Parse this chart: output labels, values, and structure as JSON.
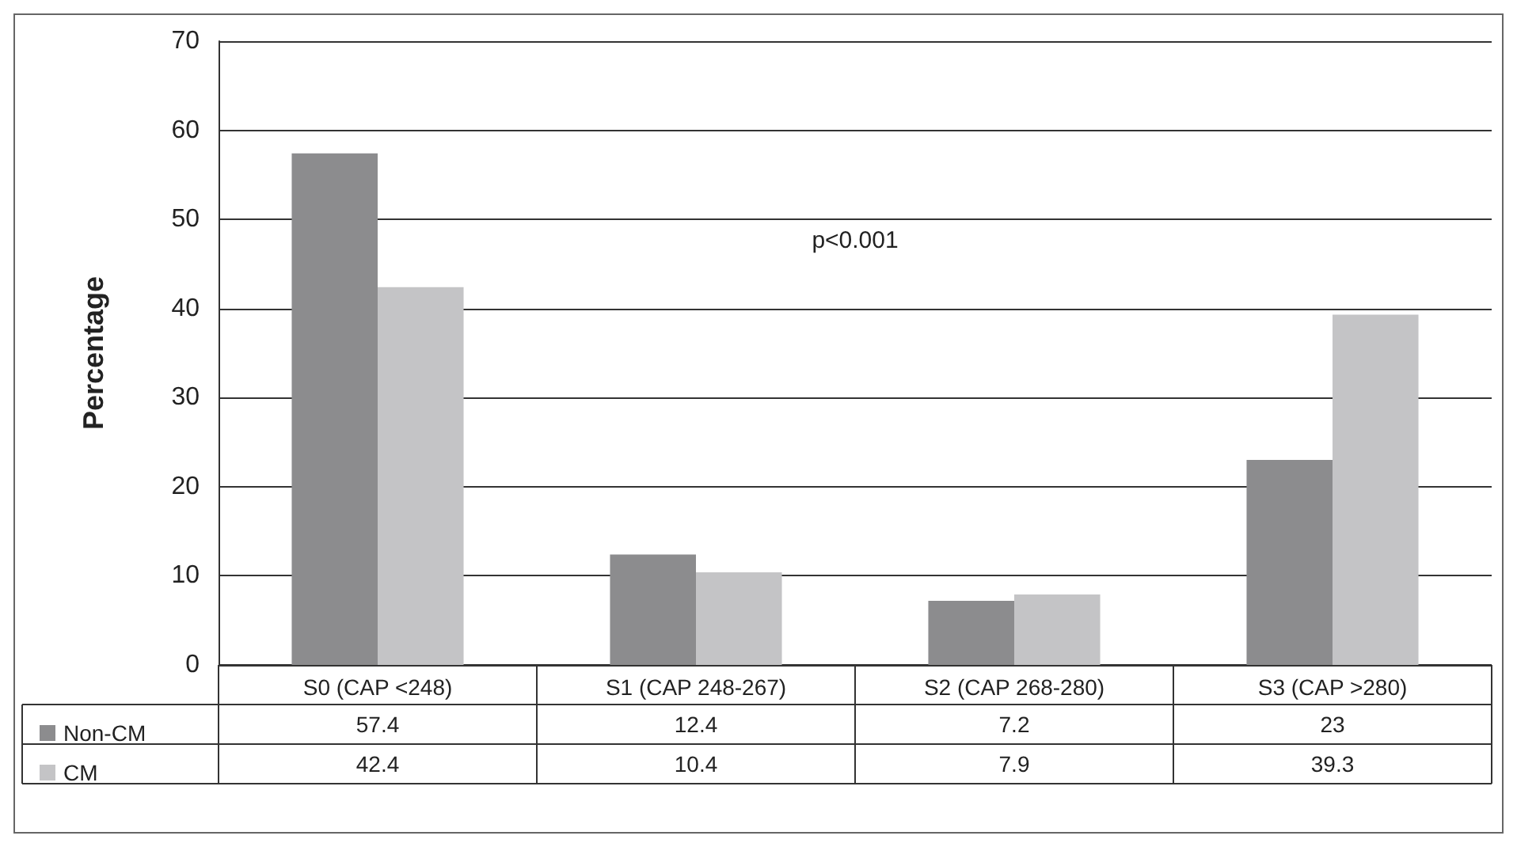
{
  "chart_data": {
    "type": "bar",
    "ylabel": "Percentage",
    "categories": [
      "S0 (CAP <248)",
      "S1 (CAP 248-267)",
      "S2 (CAP 268-280)",
      "S3 (CAP >280)"
    ],
    "series": [
      {
        "name": "Non-CM",
        "color": "#8c8c8e",
        "values": [
          57.4,
          12.4,
          7.2,
          23
        ]
      },
      {
        "name": "CM",
        "color": "#c4c4c6",
        "values": [
          42.4,
          10.4,
          7.9,
          39.3
        ]
      }
    ],
    "ylim": [
      0,
      70
    ],
    "yticks": [
      0,
      10,
      20,
      30,
      40,
      50,
      60,
      70
    ],
    "grid": "y",
    "legend": "bottom left",
    "data_labels": true,
    "annotations": [
      "p<0.001"
    ]
  }
}
